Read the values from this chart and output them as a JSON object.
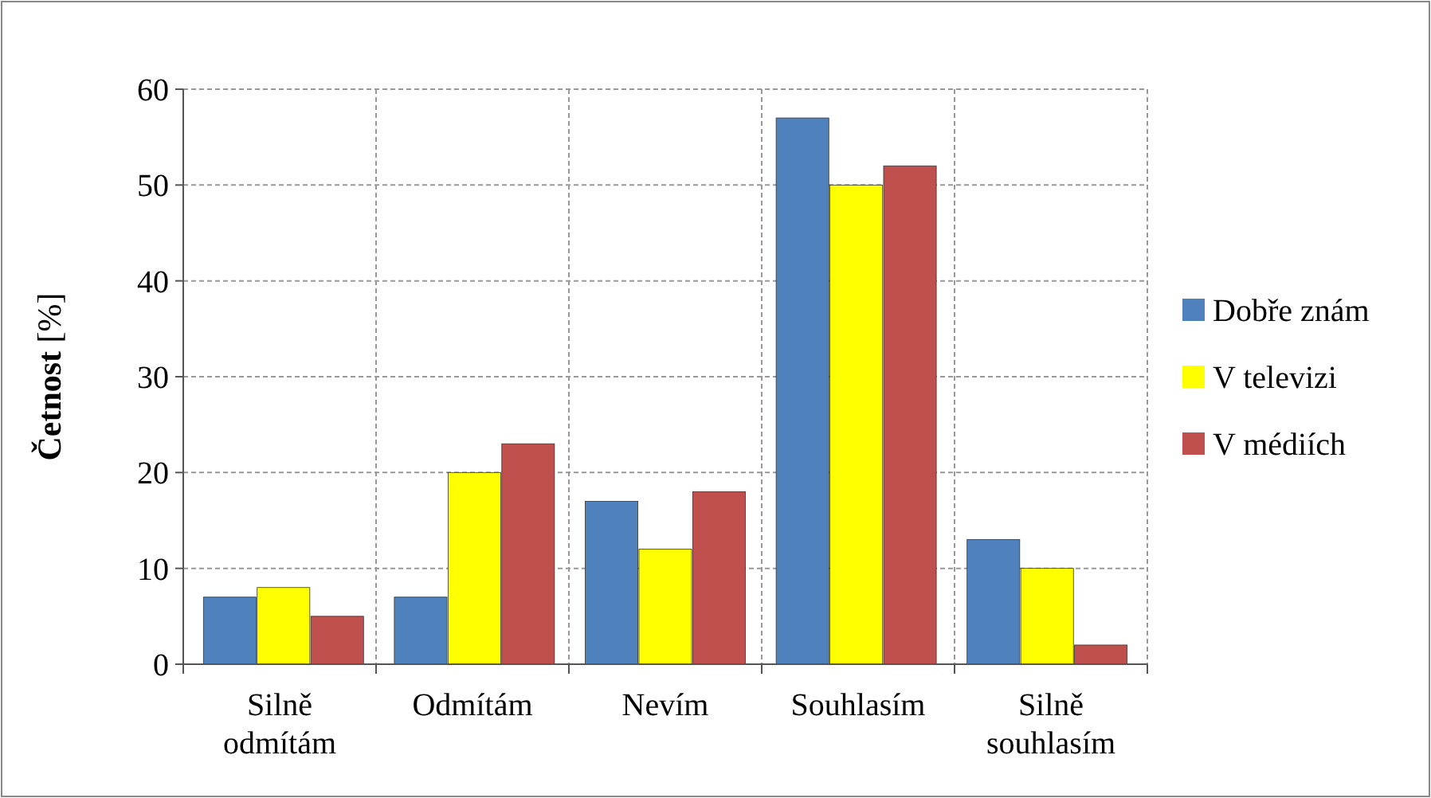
{
  "chart_data": {
    "type": "bar",
    "ylabel": "Četnost [%]",
    "categories": [
      "Silně odmítám",
      "Odmítám",
      "Nevím",
      "Souhlasím",
      "Silně souhlasím"
    ],
    "series": [
      {
        "name": "Dobře znám",
        "color": "#4f81bd",
        "values": [
          7,
          7,
          17,
          57,
          13
        ]
      },
      {
        "name": "V televizi",
        "color": "#ffff00",
        "values": [
          8,
          20,
          12,
          50,
          10
        ]
      },
      {
        "name": "V médiích",
        "color": "#c0504d",
        "values": [
          5,
          23,
          18,
          52,
          2
        ]
      }
    ],
    "ylim": [
      0,
      60
    ],
    "yticks": [
      0,
      10,
      20,
      30,
      40,
      50,
      60
    ],
    "grid": true,
    "legend": "right"
  }
}
